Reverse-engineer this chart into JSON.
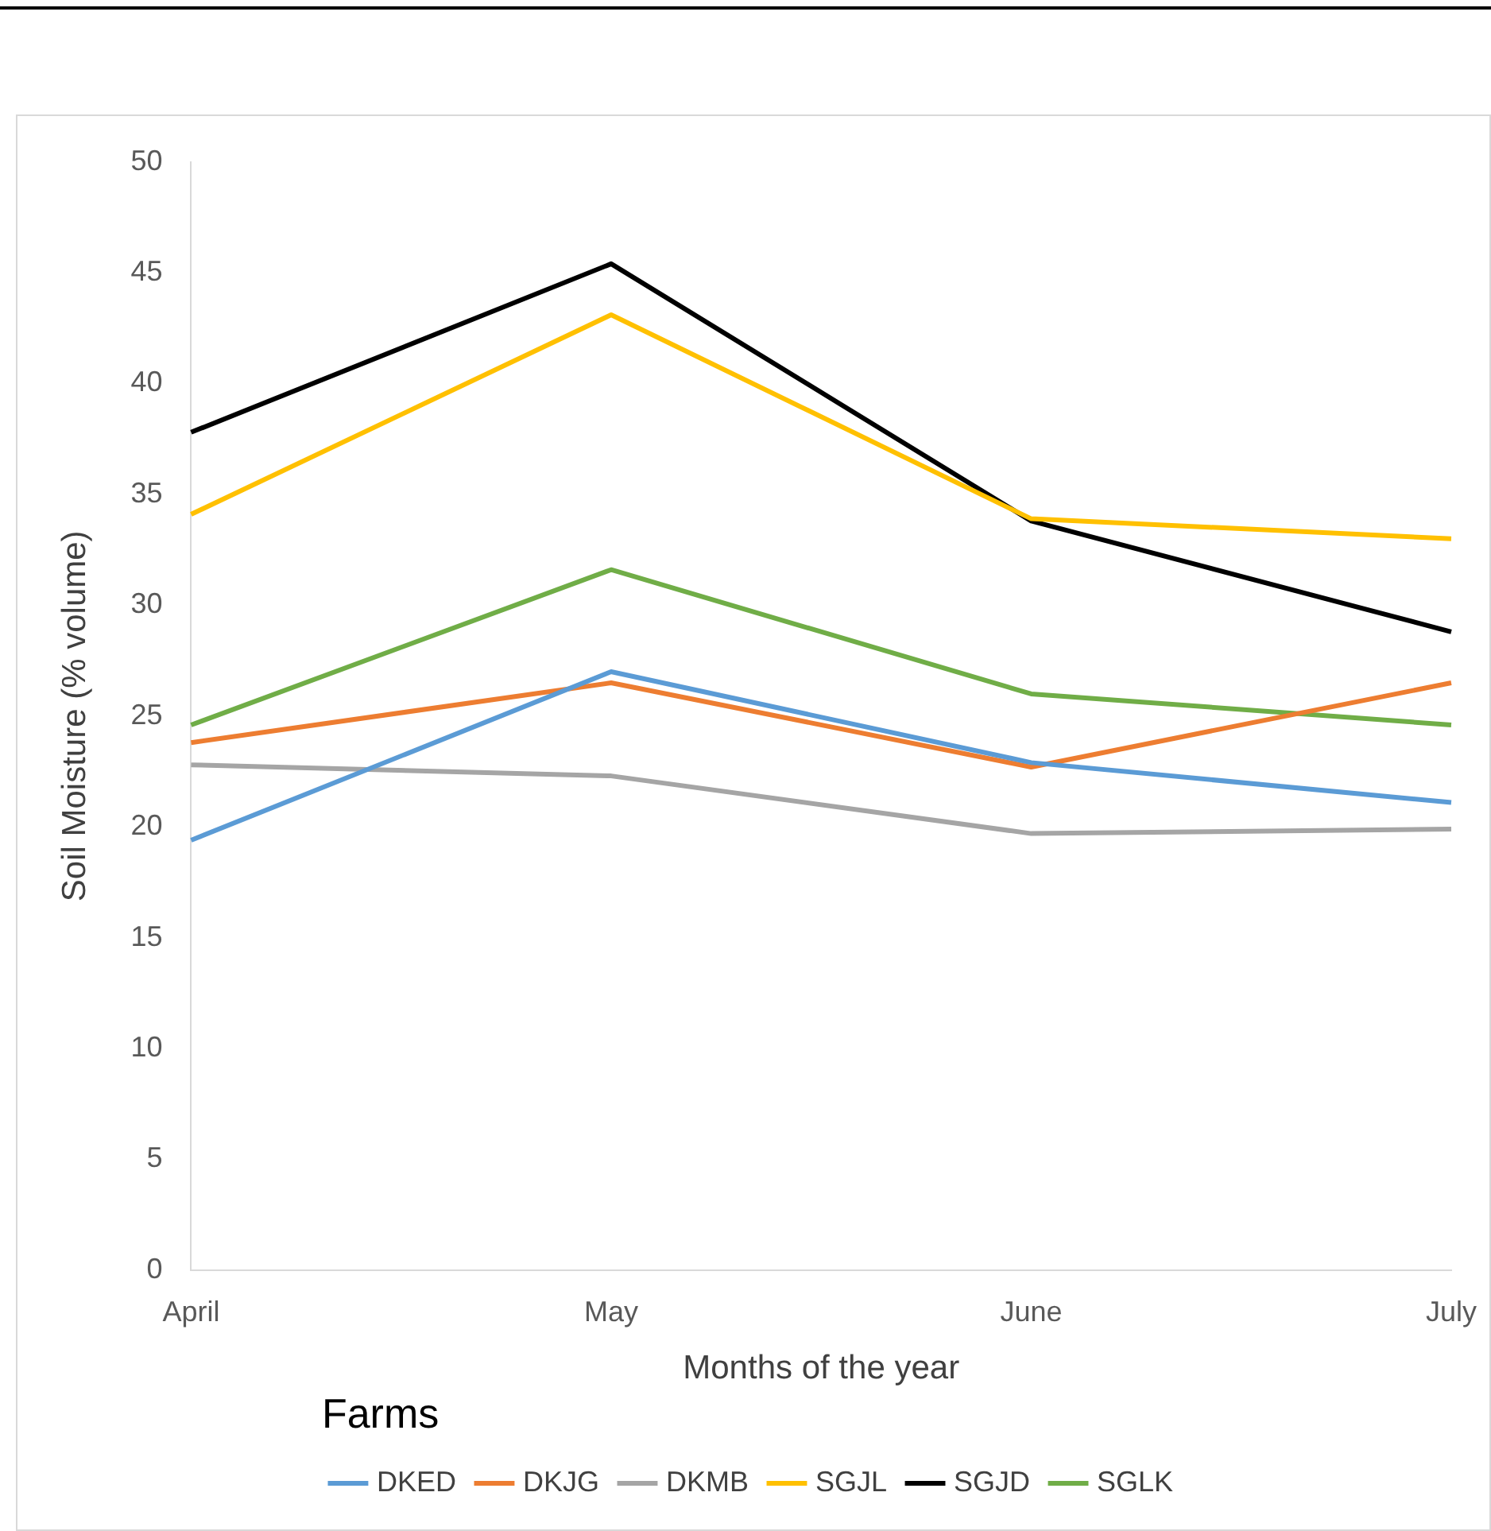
{
  "chart_data": {
    "type": "line",
    "xlabel": "Months of the year",
    "ylabel": "Soil Moisture (% volume)",
    "legend_title": "Farms",
    "legend": "bottom",
    "grid": false,
    "marker": "none",
    "line_style": "solid",
    "categories": [
      "April",
      "May",
      "June",
      "July"
    ],
    "ylim": [
      0,
      50
    ],
    "yticks": [
      0,
      5,
      10,
      15,
      20,
      25,
      30,
      35,
      40,
      45,
      50
    ],
    "series": [
      {
        "name": "DKED",
        "color": "#5b9bd5",
        "values": [
          19.4,
          27.0,
          22.9,
          21.1
        ]
      },
      {
        "name": "DKJG",
        "color": "#ed7d31",
        "values": [
          23.8,
          26.5,
          22.7,
          26.5
        ]
      },
      {
        "name": "DKMB",
        "color": "#a5a5a5",
        "values": [
          22.8,
          22.3,
          19.7,
          19.9
        ]
      },
      {
        "name": "SGJL",
        "color": "#ffc000",
        "values": [
          34.1,
          43.1,
          33.9,
          33.0
        ]
      },
      {
        "name": "SGJD",
        "color": "#000000",
        "values": [
          37.8,
          45.4,
          33.8,
          28.8
        ]
      },
      {
        "name": "SGLK",
        "color": "#70ad47",
        "values": [
          24.6,
          31.6,
          26.0,
          24.6
        ]
      }
    ]
  }
}
